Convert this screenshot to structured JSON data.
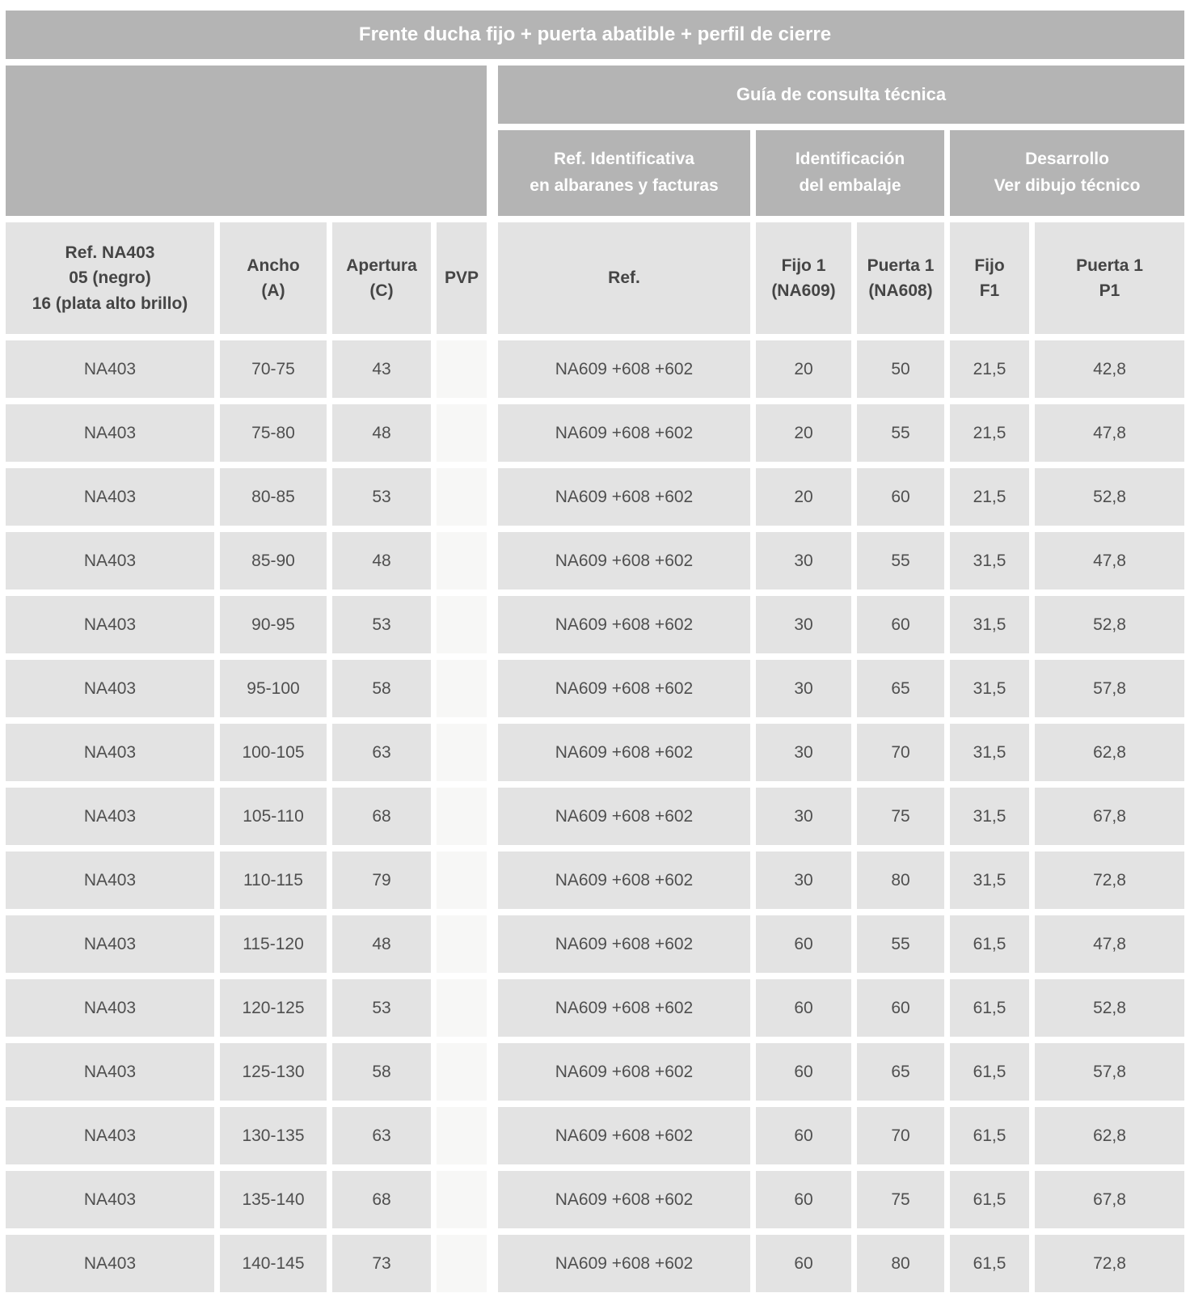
{
  "title_bar": "Frente ducha fijo + puerta abatible + perfil de cierre",
  "technical_guide": {
    "header": "Guía de consulta técnica",
    "groups": {
      "ref_identificativa": "Ref. Identificativa\nen albaranes y facturas",
      "identificacion_embalaje": "Identificación\ndel embalaje",
      "desarrollo": "Desarrollo\nVer dibujo técnico"
    }
  },
  "columns": {
    "ref_model": "Ref. NA403\n05 (negro)\n16 (plata alto brillo)",
    "ancho": "Ancho\n(A)",
    "apertura": "Apertura\n(C)",
    "pvp": "PVP",
    "ref": "Ref.",
    "fijo1": "Fijo 1\n(NA609)",
    "puerta1": "Puerta 1\n(NA608)",
    "fijo_f1": "Fijo\nF1",
    "puerta1_p1": "Puerta 1\nP1"
  },
  "column_ids": [
    "ref-model",
    "ancho",
    "apertura",
    "pvp",
    "ref-combo",
    "fijo1-qty",
    "puerta1-qty",
    "fijo-f1",
    "puerta1-p1"
  ],
  "rows": [
    [
      "NA403",
      "70-75",
      "43",
      "",
      "NA609 +608 +602",
      "20",
      "50",
      "21,5",
      "42,8"
    ],
    [
      "NA403",
      "75-80",
      "48",
      "",
      "NA609 +608 +602",
      "20",
      "55",
      "21,5",
      "47,8"
    ],
    [
      "NA403",
      "80-85",
      "53",
      "",
      "NA609 +608 +602",
      "20",
      "60",
      "21,5",
      "52,8"
    ],
    [
      "NA403",
      "85-90",
      "48",
      "",
      "NA609 +608 +602",
      "30",
      "55",
      "31,5",
      "47,8"
    ],
    [
      "NA403",
      "90-95",
      "53",
      "",
      "NA609 +608 +602",
      "30",
      "60",
      "31,5",
      "52,8"
    ],
    [
      "NA403",
      "95-100",
      "58",
      "",
      "NA609 +608 +602",
      "30",
      "65",
      "31,5",
      "57,8"
    ],
    [
      "NA403",
      "100-105",
      "63",
      "",
      "NA609 +608 +602",
      "30",
      "70",
      "31,5",
      "62,8"
    ],
    [
      "NA403",
      "105-110",
      "68",
      "",
      "NA609 +608 +602",
      "30",
      "75",
      "31,5",
      "67,8"
    ],
    [
      "NA403",
      "110-115",
      "79",
      "",
      "NA609 +608 +602",
      "30",
      "80",
      "31,5",
      "72,8"
    ],
    [
      "NA403",
      "115-120",
      "48",
      "",
      "NA609 +608 +602",
      "60",
      "55",
      "61,5",
      "47,8"
    ],
    [
      "NA403",
      "120-125",
      "53",
      "",
      "NA609 +608 +602",
      "60",
      "60",
      "61,5",
      "52,8"
    ],
    [
      "NA403",
      "125-130",
      "58",
      "",
      "NA609 +608 +602",
      "60",
      "65",
      "61,5",
      "57,8"
    ],
    [
      "NA403",
      "130-135",
      "63",
      "",
      "NA609 +608 +602",
      "60",
      "70",
      "61,5",
      "62,8"
    ],
    [
      "NA403",
      "135-140",
      "68",
      "",
      "NA609 +608 +602",
      "60",
      "75",
      "61,5",
      "67,8"
    ],
    [
      "NA403",
      "140-145",
      "73",
      "",
      "NA609 +608 +602",
      "60",
      "80",
      "61,5",
      "72,8"
    ]
  ],
  "colors": {
    "header_gray": "#b4b4b4",
    "cell_gray": "#e3e3e3",
    "pvp_cell_gray": "#f7f7f6",
    "text_dark": "#4f4f4f",
    "text_white": "#ffffff"
  }
}
